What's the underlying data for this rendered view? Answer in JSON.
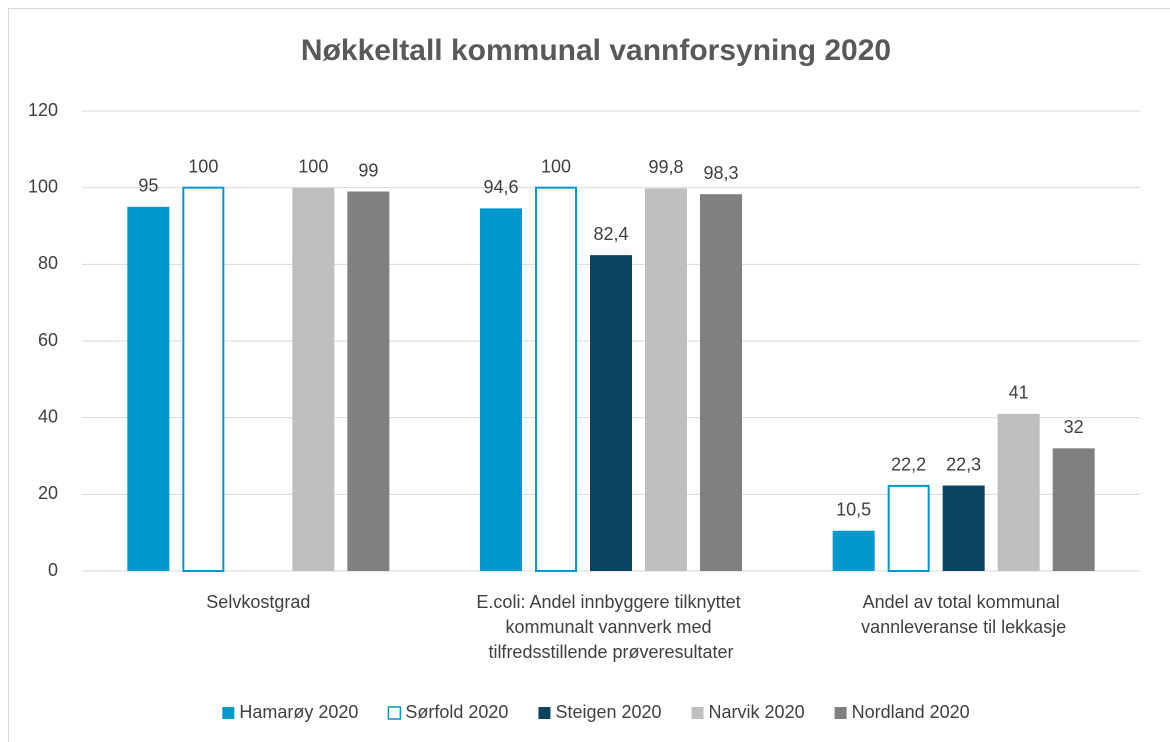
{
  "chart_data": {
    "type": "bar",
    "title": "Nøkkeltall kommunal vannforsyning 2020",
    "categories": [
      "Selvkostgrad",
      "E.coli: Andel innbyggere tilknyttet kommunalt vannverk med tilfredsstillende prøveresultater",
      "Andel av total kommunal vannleveranse til lekkasje"
    ],
    "series": [
      {
        "name": "Hamarøy 2020",
        "color": "#0099cc",
        "values": [
          95,
          94.6,
          10.5
        ],
        "value_labels": [
          "95",
          "94,6",
          "10,5"
        ]
      },
      {
        "name": "Sørfold 2020",
        "color": "#0099cc",
        "outline": true,
        "values": [
          100,
          100,
          22.2
        ],
        "value_labels": [
          "100",
          "100",
          "22,2"
        ]
      },
      {
        "name": "Steigen 2020",
        "color": "#0b4460",
        "values": [
          null,
          82.4,
          22.3
        ],
        "value_labels": [
          null,
          "82,4",
          "22,3"
        ]
      },
      {
        "name": "Narvik 2020",
        "color": "#bfbfbf",
        "values": [
          100,
          99.8,
          41
        ],
        "value_labels": [
          "100",
          "99,8",
          "41"
        ]
      },
      {
        "name": "Nordland 2020",
        "color": "#808080",
        "values": [
          99,
          98.3,
          32
        ],
        "value_labels": [
          "99",
          "98,3",
          "32"
        ]
      }
    ],
    "ylim": [
      0,
      120
    ],
    "yticks": [
      0,
      20,
      40,
      60,
      80,
      100,
      120
    ],
    "grid": true,
    "legend": "bottom"
  }
}
